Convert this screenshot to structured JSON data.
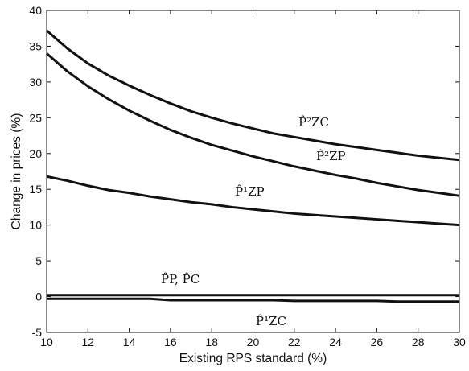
{
  "chart_data": {
    "type": "line",
    "title": "",
    "xlabel": "Existing RPS standard (%)",
    "ylabel": "Change in prices (%)",
    "xlim": [
      10,
      30
    ],
    "ylim": [
      -5,
      40
    ],
    "xticks": [
      10,
      12,
      14,
      16,
      18,
      20,
      22,
      24,
      26,
      28,
      30
    ],
    "yticks": [
      -5,
      0,
      5,
      10,
      15,
      20,
      25,
      30,
      35,
      40
    ],
    "grid": false,
    "legend": "inline labels",
    "x": [
      10,
      11,
      12,
      13,
      14,
      15,
      16,
      17,
      18,
      19,
      20,
      21,
      22,
      23,
      24,
      25,
      26,
      27,
      28,
      29,
      30
    ],
    "series": [
      {
        "name": "P̂²ZC",
        "values": [
          37.2,
          34.7,
          32.6,
          30.9,
          29.5,
          28.2,
          27.0,
          25.9,
          25.0,
          24.2,
          23.5,
          22.8,
          22.3,
          21.8,
          21.3,
          20.9,
          20.5,
          20.1,
          19.7,
          19.4,
          19.1
        ]
      },
      {
        "name": "P̂²ZP",
        "values": [
          34.0,
          31.5,
          29.4,
          27.6,
          26.0,
          24.6,
          23.3,
          22.2,
          21.2,
          20.4,
          19.6,
          18.9,
          18.2,
          17.6,
          17.0,
          16.5,
          15.9,
          15.4,
          14.9,
          14.5,
          14.1
        ]
      },
      {
        "name": "P̂¹ZP",
        "values": [
          16.8,
          16.2,
          15.5,
          14.9,
          14.5,
          14.0,
          13.6,
          13.2,
          12.9,
          12.5,
          12.2,
          11.9,
          11.6,
          11.4,
          11.2,
          11.0,
          10.8,
          10.6,
          10.4,
          10.2,
          10.0
        ]
      },
      {
        "name": "P̂P, P̂C",
        "values": [
          0.2,
          0.2,
          0.2,
          0.2,
          0.2,
          0.2,
          0.2,
          0.2,
          0.2,
          0.2,
          0.2,
          0.2,
          0.2,
          0.2,
          0.2,
          0.2,
          0.2,
          0.2,
          0.2,
          0.2,
          0.2
        ]
      },
      {
        "name": "P̂¹ZC",
        "values": [
          -0.3,
          -0.3,
          -0.3,
          -0.3,
          -0.3,
          -0.3,
          -0.5,
          -0.5,
          -0.5,
          -0.5,
          -0.5,
          -0.5,
          -0.6,
          -0.6,
          -0.6,
          -0.6,
          -0.6,
          -0.7,
          -0.7,
          -0.7,
          -0.7
        ]
      }
    ]
  }
}
